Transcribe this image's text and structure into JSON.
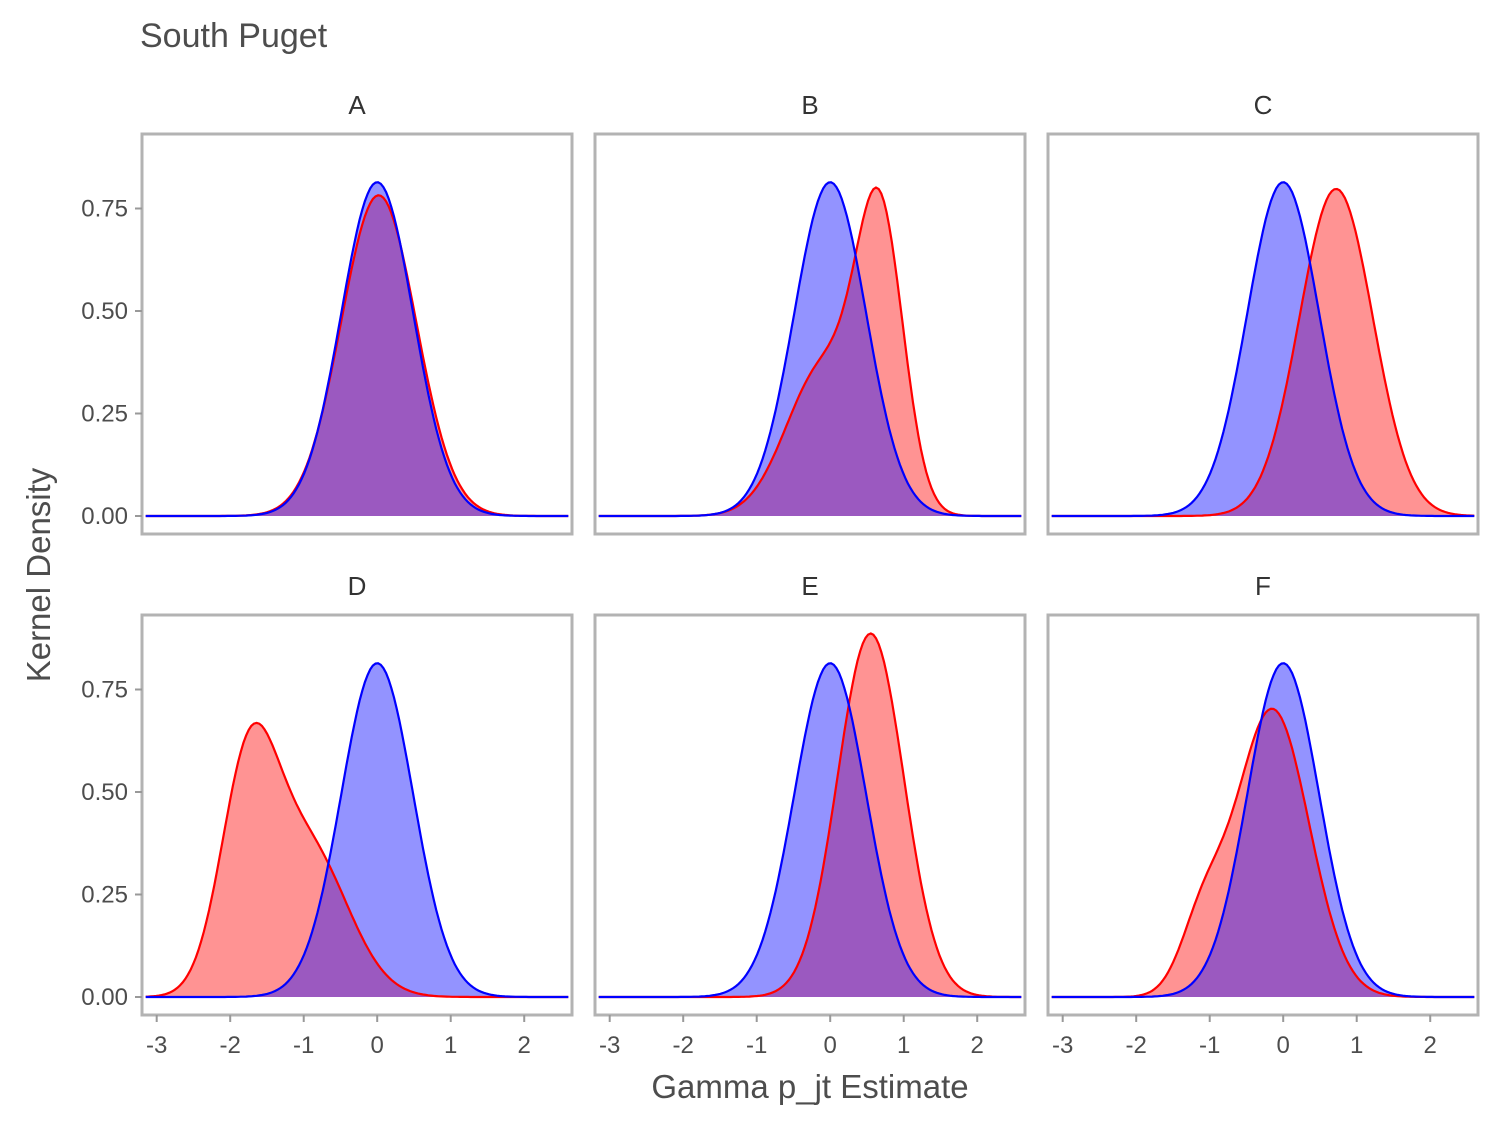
{
  "title": "South Puget",
  "xlabel": "Gamma p_jt Estimate",
  "ylabel": "Kernel Density",
  "chart_data": {
    "type": "area",
    "facet_layout": "3 columns x 2 rows, shared axes",
    "xlim": [
      -3.2,
      2.65
    ],
    "ylim": [
      0,
      0.9
    ],
    "x_ticks": [
      -3,
      -2,
      -1,
      0,
      1,
      2
    ],
    "x_tick_labels": [
      "-3",
      "-2",
      "-1",
      "0",
      "1",
      "2"
    ],
    "y_ticks": [
      0,
      0.25,
      0.5,
      0.75
    ],
    "y_tick_labels": [
      "0.00",
      "0.25",
      "0.50",
      "0.75"
    ],
    "series_colors": {
      "red": "#ff0000",
      "blue": "#0000ff"
    },
    "fill_colors": {
      "red": "#ff8080",
      "blue": "#8080ff"
    },
    "overlap_color": "#9b59c0",
    "grid": false,
    "panels": [
      {
        "label": "A",
        "series": [
          {
            "color": "red",
            "components": [
              {
                "w": 1,
                "mu": 0.02,
                "sd": 0.51
              }
            ]
          },
          {
            "color": "blue",
            "components": [
              {
                "w": 1,
                "mu": 0.0,
                "sd": 0.49
              }
            ]
          }
        ]
      },
      {
        "label": "B",
        "series": [
          {
            "color": "red",
            "components": [
              {
                "w": 0.55,
                "mu": 0.68,
                "sd": 0.32
              },
              {
                "w": 0.45,
                "mu": -0.1,
                "sd": 0.5
              }
            ]
          },
          {
            "color": "blue",
            "components": [
              {
                "w": 1,
                "mu": 0.0,
                "sd": 0.49
              }
            ]
          }
        ]
      },
      {
        "label": "C",
        "series": [
          {
            "color": "red",
            "components": [
              {
                "w": 1,
                "mu": 0.72,
                "sd": 0.5
              }
            ]
          },
          {
            "color": "blue",
            "components": [
              {
                "w": 1,
                "mu": 0.0,
                "sd": 0.49
              }
            ]
          }
        ]
      },
      {
        "label": "D",
        "series": [
          {
            "color": "red",
            "components": [
              {
                "w": 0.5,
                "mu": -1.75,
                "sd": 0.38
              },
              {
                "w": 0.5,
                "mu": -0.95,
                "sd": 0.55
              }
            ]
          },
          {
            "color": "blue",
            "components": [
              {
                "w": 1,
                "mu": 0.0,
                "sd": 0.49
              }
            ]
          }
        ]
      },
      {
        "label": "E",
        "series": [
          {
            "color": "red",
            "components": [
              {
                "w": 1,
                "mu": 0.55,
                "sd": 0.45
              }
            ]
          },
          {
            "color": "blue",
            "components": [
              {
                "w": 1,
                "mu": 0.0,
                "sd": 0.49
              }
            ]
          }
        ]
      },
      {
        "label": "F",
        "series": [
          {
            "color": "red",
            "components": [
              {
                "w": 0.88,
                "mu": -0.15,
                "sd": 0.5
              },
              {
                "w": 0.12,
                "mu": -1.1,
                "sd": 0.3
              }
            ]
          },
          {
            "color": "blue",
            "components": [
              {
                "w": 1,
                "mu": 0.0,
                "sd": 0.49
              }
            ]
          }
        ]
      }
    ]
  }
}
